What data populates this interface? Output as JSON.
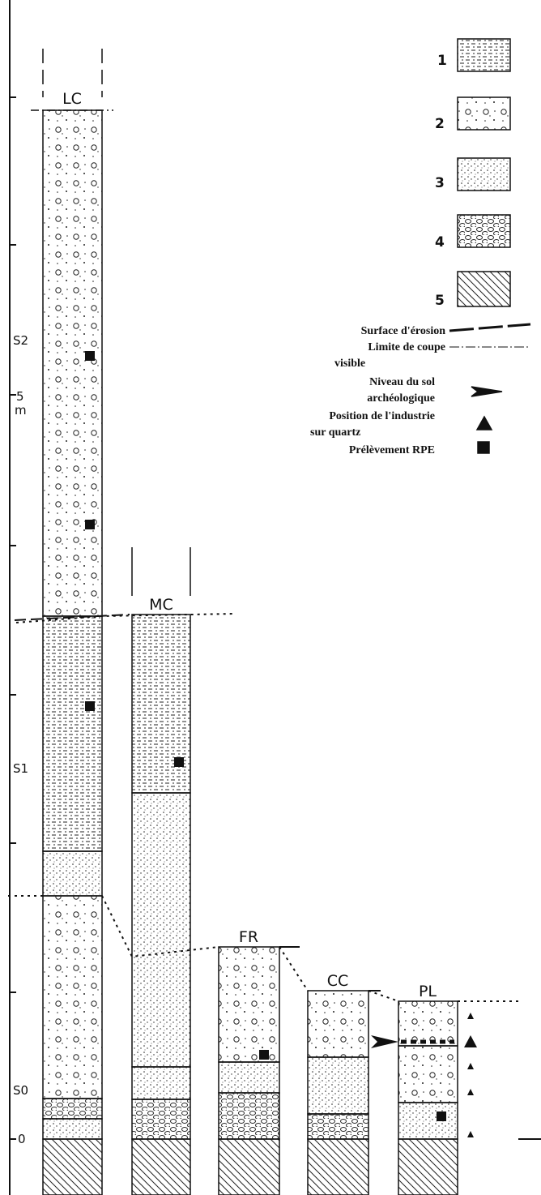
{
  "columns": [
    {
      "label": "LC"
    },
    {
      "label": "MC"
    },
    {
      "label": "FR"
    },
    {
      "label": "CC"
    },
    {
      "label": "PL"
    }
  ],
  "legend": {
    "fills": [
      "1",
      "2",
      "3",
      "4",
      "5"
    ],
    "symbols": [
      {
        "lines": [
          "Surface d'érosion"
        ]
      },
      {
        "lines": [
          "Limite de coupe",
          "visible"
        ]
      },
      {
        "lines": [
          "Niveau du sol",
          "archéologique"
        ]
      },
      {
        "lines": [
          "Position de l'industrie",
          "sur quartz"
        ]
      },
      {
        "lines": [
          "Prélèvement RPE"
        ]
      }
    ]
  },
  "axis": {
    "labels": [
      "S2",
      "5",
      "m",
      "S1",
      "S0",
      "0"
    ]
  }
}
